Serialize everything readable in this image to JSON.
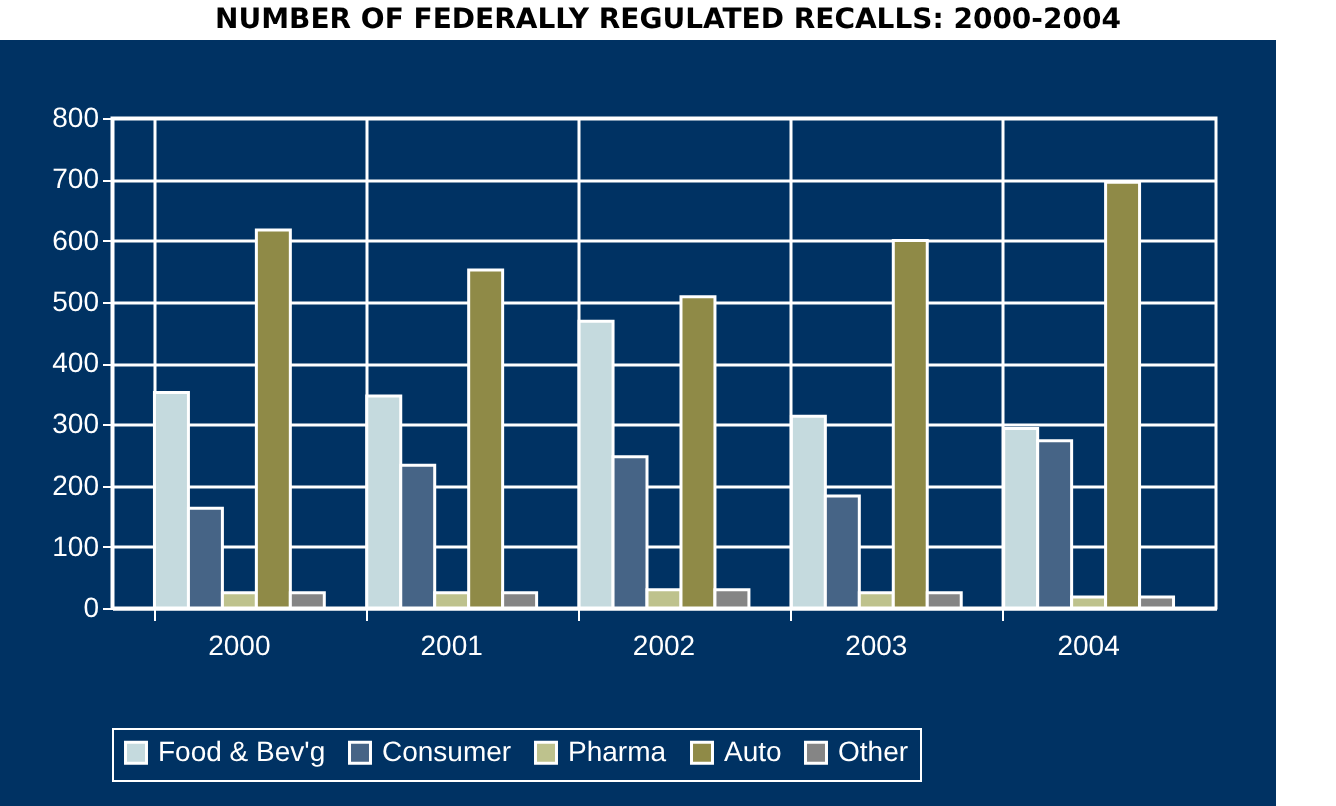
{
  "chart_data": {
    "type": "bar",
    "title": "NUMBER OF FEDERALLY REGULATED RECALLS: 2000-2004",
    "categories": [
      "2000",
      "2001",
      "2002",
      "2003",
      "2004"
    ],
    "series": [
      {
        "name": "Food & Bev'g",
        "color": "#c5dade",
        "values": [
          352,
          346,
          468,
          313,
          293
        ]
      },
      {
        "name": "Consumer",
        "color": "#466486",
        "values": [
          163,
          233,
          247,
          183,
          273
        ]
      },
      {
        "name": "Pharma",
        "color": "#bec28d",
        "values": [
          25,
          25,
          30,
          25,
          18
        ]
      },
      {
        "name": "Auto",
        "color": "#8f8a47",
        "values": [
          617,
          552,
          508,
          600,
          695
        ]
      },
      {
        "name": "Other",
        "color": "#858585",
        "values": [
          25,
          25,
          30,
          25,
          18
        ]
      }
    ],
    "ylim": [
      0,
      800
    ],
    "yticks": [
      0,
      100,
      200,
      300,
      400,
      500,
      600,
      700,
      800
    ],
    "grid": true,
    "legend": "bottom"
  }
}
